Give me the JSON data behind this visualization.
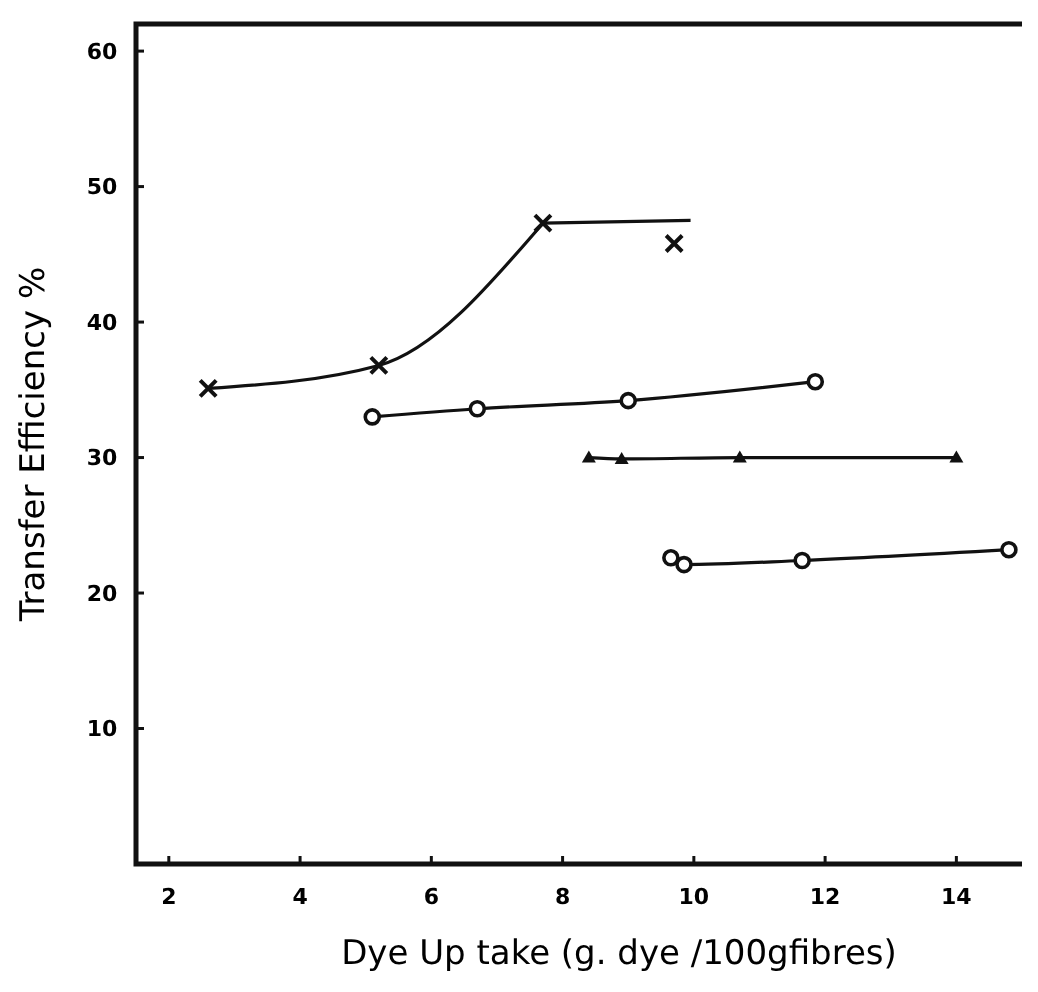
{
  "chart_data": {
    "type": "line",
    "xlabel": "Dye Up take (g. dye /100gfibres)",
    "ylabel": "Transfer Efficiency %",
    "xlim": [
      1.5,
      15
    ],
    "ylim": [
      0,
      62
    ],
    "xticks": [
      2,
      4,
      6,
      8,
      10,
      12,
      14
    ],
    "yticks": [
      10,
      20,
      30,
      40,
      50,
      60
    ],
    "grid": false,
    "series": [
      {
        "color": "#111111",
        "marker": "cross",
        "x": [
          2.6,
          5.2,
          7.7
        ],
        "values": [
          35.1,
          36.8,
          47.3
        ]
      },
      {
        "color": "#111111",
        "marker": "none",
        "x": [
          7.7,
          9.95
        ],
        "values": [
          47.3,
          47.5
        ]
      },
      {
        "type": "scatter",
        "color": "#111111",
        "marker": "cross",
        "x": [
          9.7
        ],
        "values": [
          45.8
        ]
      },
      {
        "color": "#111111",
        "marker": "circle",
        "x": [
          5.1,
          6.7,
          9.0,
          11.85
        ],
        "values": [
          33.0,
          33.6,
          34.2,
          35.6
        ]
      },
      {
        "color": "#111111",
        "marker": "triangle",
        "x": [
          8.4,
          8.9,
          10.7,
          14.0
        ],
        "values": [
          30.0,
          29.9,
          30.0,
          30.0
        ]
      },
      {
        "color": "#111111",
        "marker": "circle",
        "x": [
          9.65,
          9.85,
          11.65,
          14.8
        ],
        "values": [
          22.6,
          22.1,
          22.4,
          23.2
        ]
      }
    ]
  }
}
